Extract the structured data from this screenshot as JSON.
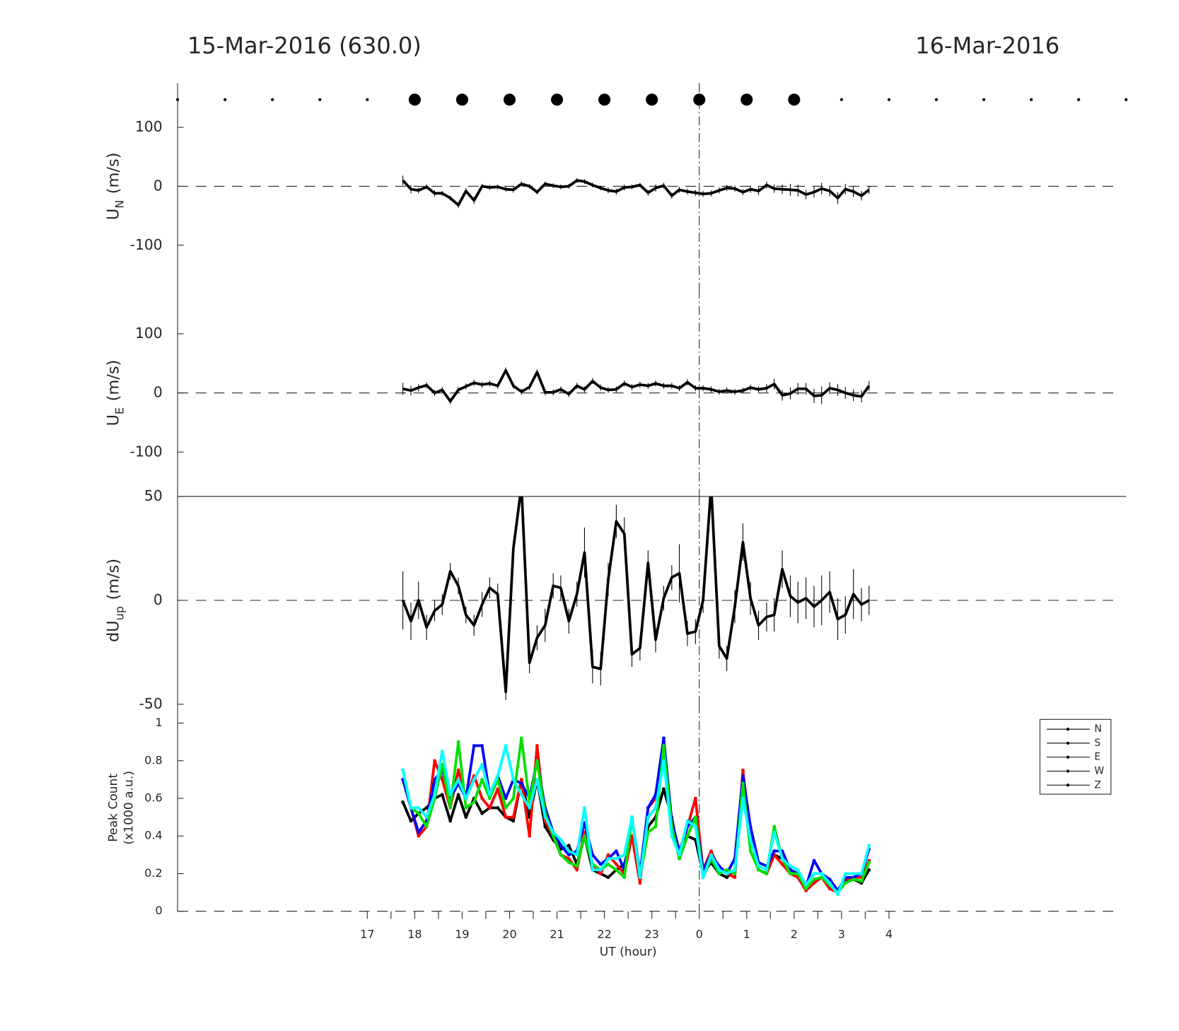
{
  "title_left": "15-Mar-2016 (630.0)",
  "title_right": "16-Mar-2016",
  "chart_data": [
    {
      "type": "line",
      "y_label": "U",
      "y_label_sub": "N",
      "y_label_unit": "(m/s)",
      "color": "#000000",
      "xlim": [
        -11,
        9
      ],
      "ylim": [
        -175,
        175
      ],
      "yticks": [
        -100,
        0,
        100
      ],
      "hline": 0,
      "vline": 0,
      "markers": {
        "y": 147,
        "x": [
          -11,
          -10,
          -9,
          -8,
          -7,
          -6,
          -5,
          -4,
          -3,
          -2,
          -1,
          0,
          1,
          2,
          3,
          4,
          5,
          6,
          7,
          8,
          9
        ],
        "sizes": [
          1,
          1,
          1,
          1,
          1,
          4,
          4,
          4,
          4,
          4,
          4,
          4,
          4,
          4,
          1,
          1,
          1,
          1,
          1,
          1,
          1
        ]
      },
      "x": [
        -6.25,
        -6.08,
        -5.92,
        -5.75,
        -5.58,
        -5.42,
        -5.25,
        -5.08,
        -4.92,
        -4.75,
        -4.58,
        -4.42,
        -4.25,
        -4.08,
        -3.92,
        -3.75,
        -3.58,
        -3.42,
        -3.25,
        -3.08,
        -2.92,
        -2.75,
        -2.58,
        -2.42,
        -2.25,
        -2.08,
        -1.92,
        -1.75,
        -1.58,
        -1.42,
        -1.25,
        -1.08,
        -0.92,
        -0.75,
        -0.58,
        -0.42,
        -0.25,
        -0.08,
        0.08,
        0.25,
        0.42,
        0.58,
        0.75,
        0.92,
        1.08,
        1.25,
        1.42,
        1.58,
        1.75,
        1.92,
        2.08,
        2.25,
        2.42,
        2.58,
        2.75,
        2.92,
        3.08,
        3.25,
        3.42,
        3.58
      ],
      "values": [
        10,
        -5,
        -7,
        -1,
        -12,
        -12,
        -20,
        -32,
        -8,
        -24,
        0,
        -2,
        -1,
        -5,
        -6,
        4,
        0,
        -10,
        4,
        1,
        -1,
        0,
        10,
        8,
        2,
        -3,
        -7,
        -9,
        -2,
        -1,
        2,
        -11,
        -3,
        1,
        -16,
        -6,
        -9,
        -11,
        -13,
        -12,
        -7,
        -3,
        -4,
        -10,
        -5,
        -8,
        2,
        -4,
        -5,
        -6,
        -7,
        -14,
        -10,
        -4,
        -8,
        -20,
        -5,
        -9,
        -16,
        -6
      ],
      "errors": [
        8,
        7,
        5,
        4,
        5,
        4,
        4,
        5,
        5,
        6,
        4,
        4,
        4,
        4,
        5,
        4,
        4,
        4,
        4,
        4,
        4,
        4,
        4,
        4,
        4,
        4,
        5,
        5,
        5,
        4,
        4,
        5,
        6,
        5,
        5,
        5,
        5,
        5,
        5,
        5,
        5,
        5,
        5,
        5,
        6,
        7,
        6,
        7,
        8,
        10,
        10,
        8,
        9,
        10,
        9,
        10,
        9,
        9,
        8,
        7
      ]
    },
    {
      "type": "line",
      "y_label": "U",
      "y_label_sub": "E",
      "y_label_unit": "(m/s)",
      "color": "#000000",
      "xlim": [
        -11,
        9
      ],
      "ylim": [
        -175,
        175
      ],
      "yticks": [
        -100,
        0,
        100
      ],
      "hline": 0,
      "vline": 0,
      "x": [
        -6.25,
        -6.08,
        -5.92,
        -5.75,
        -5.58,
        -5.42,
        -5.25,
        -5.08,
        -4.92,
        -4.75,
        -4.58,
        -4.42,
        -4.25,
        -4.08,
        -3.92,
        -3.75,
        -3.58,
        -3.42,
        -3.25,
        -3.08,
        -2.92,
        -2.75,
        -2.58,
        -2.42,
        -2.25,
        -2.08,
        -1.92,
        -1.75,
        -1.58,
        -1.42,
        -1.25,
        -1.08,
        -0.92,
        -0.75,
        -0.58,
        -0.42,
        -0.25,
        -0.08,
        0.08,
        0.25,
        0.42,
        0.58,
        0.75,
        0.92,
        1.08,
        1.25,
        1.42,
        1.58,
        1.75,
        1.92,
        2.08,
        2.25,
        2.42,
        2.58,
        2.75,
        2.92,
        3.08,
        3.25,
        3.42,
        3.58
      ],
      "values": [
        7,
        4,
        9,
        13,
        0,
        5,
        -14,
        5,
        11,
        17,
        14,
        16,
        12,
        38,
        12,
        2,
        10,
        35,
        1,
        1,
        6,
        -2,
        12,
        6,
        20,
        9,
        5,
        6,
        16,
        10,
        14,
        12,
        16,
        12,
        12,
        8,
        18,
        8,
        8,
        6,
        2,
        4,
        2,
        4,
        9,
        6,
        8,
        15,
        -4,
        -1,
        7,
        7,
        -5,
        -4,
        8,
        5,
        0,
        -4,
        -6,
        12
      ],
      "errors": [
        10,
        8,
        6,
        5,
        5,
        5,
        5,
        5,
        5,
        5,
        5,
        5,
        5,
        5,
        5,
        5,
        5,
        5,
        5,
        5,
        5,
        5,
        5,
        5,
        5,
        5,
        5,
        5,
        5,
        5,
        5,
        5,
        5,
        5,
        5,
        5,
        5,
        5,
        5,
        5,
        5,
        5,
        5,
        5,
        5,
        5,
        7,
        9,
        9,
        10,
        10,
        10,
        12,
        15,
        10,
        10,
        10,
        10,
        10,
        8
      ]
    },
    {
      "type": "line",
      "y_label": "dU",
      "y_label_sub": "up",
      "y_label_unit": "(m/s)",
      "color": "#000000",
      "xlim": [
        -11,
        9
      ],
      "ylim": [
        -50,
        50
      ],
      "yticks": [
        -50,
        0,
        50
      ],
      "hline": 0,
      "vline": 0,
      "x": [
        -6.25,
        -6.08,
        -5.92,
        -5.75,
        -5.58,
        -5.42,
        -5.25,
        -5.08,
        -4.92,
        -4.75,
        -4.58,
        -4.42,
        -4.25,
        -4.08,
        -3.92,
        -3.75,
        -3.58,
        -3.42,
        -3.25,
        -3.08,
        -2.92,
        -2.75,
        -2.58,
        -2.42,
        -2.25,
        -2.08,
        -1.92,
        -1.75,
        -1.58,
        -1.42,
        -1.25,
        -1.08,
        -0.92,
        -0.75,
        -0.58,
        -0.42,
        -0.25,
        -0.08,
        0.08,
        0.25,
        0.42,
        0.58,
        0.75,
        0.92,
        1.08,
        1.25,
        1.42,
        1.58,
        1.75,
        1.92,
        2.08,
        2.25,
        2.42,
        2.58,
        2.75,
        2.92,
        3.08,
        3.25,
        3.42,
        3.58
      ],
      "values": [
        0,
        -10,
        0,
        -13,
        -5,
        -2,
        14,
        7,
        -7,
        -12,
        -2,
        6,
        3,
        -44,
        25,
        55,
        -30,
        -18,
        -12,
        7,
        6,
        -10,
        3,
        23,
        -32,
        -33,
        10,
        38,
        32,
        -26,
        -23,
        18,
        -19,
        1,
        11,
        13,
        -16,
        -15,
        0,
        55,
        -22,
        -28,
        -3,
        28,
        1,
        -12,
        -8,
        -7,
        15,
        2,
        -1,
        1,
        -3,
        0,
        4,
        -9,
        -7,
        3,
        -2,
        0
      ],
      "errors": [
        14,
        9,
        9,
        6,
        5,
        5,
        4,
        4,
        4,
        5,
        6,
        5,
        5,
        4,
        4,
        5,
        5,
        6,
        8,
        6,
        6,
        6,
        6,
        12,
        8,
        8,
        8,
        8,
        8,
        6,
        6,
        6,
        6,
        6,
        6,
        14,
        6,
        6,
        6,
        6,
        6,
        6,
        8,
        9,
        8,
        7,
        7,
        8,
        9,
        10,
        10,
        10,
        10,
        12,
        10,
        10,
        9,
        12,
        8,
        7
      ]
    },
    {
      "type": "line",
      "y_label": "Peak Count",
      "y_label_2": "(x1000 a.u.)",
      "x_label": "UT (hour)",
      "xlim": [
        -11,
        9
      ],
      "ylim": [
        0,
        1.1
      ],
      "yticks": [
        0,
        0.2,
        0.4,
        0.6,
        0.8,
        1
      ],
      "hline": 0,
      "vline": 0,
      "xticks": [
        {
          "value": -7,
          "label": "17"
        },
        {
          "value": -6,
          "label": "18"
        },
        {
          "value": -5,
          "label": "19"
        },
        {
          "value": -4,
          "label": "20"
        },
        {
          "value": -3,
          "label": "21"
        },
        {
          "value": -2,
          "label": "22"
        },
        {
          "value": -1,
          "label": "23"
        },
        0,
        1,
        2,
        3,
        4
      ],
      "xminorticks": [
        -6.5,
        -5.5,
        -4.5,
        -3.5,
        -2.5,
        -1.5,
        -0.5,
        0.5,
        1.5,
        2.5,
        3.5
      ],
      "x": [
        -6.25,
        -6.08,
        -5.92,
        -5.75,
        -5.58,
        -5.42,
        -5.25,
        -5.08,
        -4.92,
        -4.75,
        -4.58,
        -4.42,
        -4.25,
        -4.08,
        -3.92,
        -3.75,
        -3.58,
        -3.42,
        -3.25,
        -3.08,
        -2.92,
        -2.75,
        -2.58,
        -2.42,
        -2.25,
        -2.08,
        -1.92,
        -1.75,
        -1.58,
        -1.42,
        -1.25,
        -1.08,
        -0.92,
        -0.75,
        -0.58,
        -0.42,
        -0.25,
        -0.08,
        0.08,
        0.25,
        0.42,
        0.58,
        0.75,
        0.92,
        1.08,
        1.25,
        1.42,
        1.58,
        1.75,
        1.92,
        2.08,
        2.25,
        2.42,
        2.58,
        2.75,
        2.92,
        3.08,
        3.25,
        3.42,
        3.58
      ],
      "series": [
        {
          "name": "N",
          "color": "#000000",
          "values": [
            0.58,
            0.48,
            0.52,
            0.55,
            0.6,
            0.62,
            0.48,
            0.62,
            0.5,
            0.6,
            0.52,
            0.55,
            0.55,
            0.5,
            0.48,
            0.7,
            0.5,
            0.7,
            0.45,
            0.38,
            0.33,
            0.35,
            0.25,
            0.4,
            0.22,
            0.2,
            0.18,
            0.22,
            0.25,
            0.4,
            0.2,
            0.45,
            0.5,
            0.65,
            0.5,
            0.28,
            0.4,
            0.38,
            0.2,
            0.26,
            0.2,
            0.18,
            0.22,
            0.62,
            0.4,
            0.22,
            0.2,
            0.3,
            0.28,
            0.22,
            0.2,
            0.12,
            0.16,
            0.18,
            0.13,
            0.1,
            0.16,
            0.17,
            0.15,
            0.22
          ]
        },
        {
          "name": "S",
          "color": "#ff0000",
          "values": [
            0.7,
            0.55,
            0.4,
            0.45,
            0.8,
            0.7,
            0.55,
            0.75,
            0.6,
            0.72,
            0.6,
            0.55,
            0.65,
            0.5,
            0.5,
            0.7,
            0.4,
            0.88,
            0.48,
            0.4,
            0.3,
            0.28,
            0.22,
            0.42,
            0.25,
            0.2,
            0.3,
            0.25,
            0.2,
            0.4,
            0.15,
            0.55,
            0.6,
            0.9,
            0.45,
            0.28,
            0.45,
            0.6,
            0.22,
            0.32,
            0.22,
            0.2,
            0.18,
            0.75,
            0.4,
            0.22,
            0.2,
            0.3,
            0.25,
            0.2,
            0.18,
            0.11,
            0.15,
            0.18,
            0.12,
            0.1,
            0.17,
            0.18,
            0.18,
            0.27
          ]
        },
        {
          "name": "E",
          "color": "#0000ff",
          "values": [
            0.7,
            0.55,
            0.42,
            0.48,
            0.7,
            0.75,
            0.6,
            0.68,
            0.6,
            0.88,
            0.88,
            0.62,
            0.72,
            0.6,
            0.7,
            0.68,
            0.6,
            0.8,
            0.55,
            0.42,
            0.35,
            0.3,
            0.32,
            0.47,
            0.3,
            0.25,
            0.28,
            0.32,
            0.22,
            0.5,
            0.2,
            0.55,
            0.62,
            0.92,
            0.48,
            0.32,
            0.45,
            0.5,
            0.22,
            0.3,
            0.24,
            0.2,
            0.28,
            0.72,
            0.45,
            0.26,
            0.24,
            0.32,
            0.32,
            0.22,
            0.2,
            0.13,
            0.27,
            0.2,
            0.17,
            0.11,
            0.18,
            0.18,
            0.2,
            0.33
          ]
        },
        {
          "name": "W",
          "color": "#00e000",
          "values": [
            0.75,
            0.55,
            0.52,
            0.45,
            0.6,
            0.78,
            0.55,
            0.9,
            0.55,
            0.58,
            0.7,
            0.6,
            0.7,
            0.55,
            0.6,
            0.92,
            0.58,
            0.8,
            0.52,
            0.4,
            0.3,
            0.26,
            0.24,
            0.4,
            0.25,
            0.22,
            0.25,
            0.22,
            0.18,
            0.5,
            0.18,
            0.42,
            0.45,
            0.88,
            0.45,
            0.28,
            0.4,
            0.5,
            0.18,
            0.28,
            0.2,
            0.22,
            0.2,
            0.68,
            0.32,
            0.22,
            0.2,
            0.45,
            0.28,
            0.2,
            0.2,
            0.12,
            0.17,
            0.18,
            0.14,
            0.1,
            0.15,
            0.17,
            0.16,
            0.26
          ]
        },
        {
          "name": "Z",
          "color": "#00ffff",
          "values": [
            0.75,
            0.55,
            0.55,
            0.5,
            0.62,
            0.85,
            0.62,
            0.7,
            0.6,
            0.7,
            0.78,
            0.62,
            0.72,
            0.88,
            0.7,
            0.62,
            0.55,
            0.7,
            0.5,
            0.42,
            0.38,
            0.32,
            0.3,
            0.55,
            0.22,
            0.22,
            0.28,
            0.28,
            0.3,
            0.5,
            0.18,
            0.5,
            0.55,
            0.8,
            0.4,
            0.3,
            0.48,
            0.45,
            0.18,
            0.3,
            0.22,
            0.2,
            0.22,
            0.6,
            0.38,
            0.24,
            0.22,
            0.42,
            0.28,
            0.24,
            0.22,
            0.14,
            0.2,
            0.2,
            0.15,
            0.09,
            0.2,
            0.2,
            0.2,
            0.35
          ]
        }
      ]
    }
  ]
}
